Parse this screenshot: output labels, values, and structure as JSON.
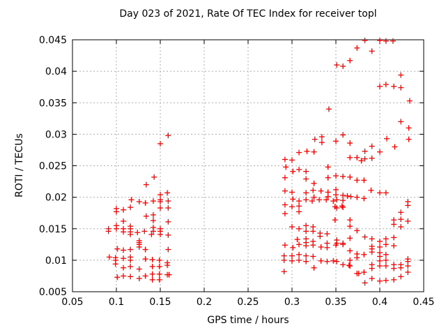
{
  "chart_data": {
    "type": "scatter",
    "title": "Day 023 of 2021, Rate Of TEC Index for receiver topl",
    "xlabel": "GPS time / hours",
    "ylabel": "ROTI / TECUs",
    "xlim": [
      0.05,
      0.45
    ],
    "ylim": [
      0.005,
      0.045
    ],
    "x_ticks": [
      "0.05",
      "0.1",
      "0.15",
      "0.2",
      "0.25",
      "0.3",
      "0.35",
      "0.4",
      "0.45"
    ],
    "y_ticks": [
      "0.005",
      "0.01",
      "0.015",
      "0.02",
      "0.025",
      "0.03",
      "0.035",
      "0.04",
      "0.045"
    ],
    "grid": true,
    "legend": "none",
    "marker": "plus",
    "marker_color": "#ff0000",
    "grid_color": "#ababab",
    "axis_color": "#000000",
    "points": [
      [
        0.159,
        0.0298
      ],
      [
        0.15,
        0.0285
      ],
      [
        0.143,
        0.0232
      ],
      [
        0.134,
        0.022
      ],
      [
        0.158,
        0.0207
      ],
      [
        0.15,
        0.0204
      ],
      [
        0.117,
        0.0196
      ],
      [
        0.126,
        0.0193
      ],
      [
        0.133,
        0.0191
      ],
      [
        0.142,
        0.0194
      ],
      [
        0.15,
        0.0196
      ],
      [
        0.15,
        0.0193
      ],
      [
        0.159,
        0.0194
      ],
      [
        0.1,
        0.0182
      ],
      [
        0.1,
        0.0177
      ],
      [
        0.108,
        0.018
      ],
      [
        0.116,
        0.0184
      ],
      [
        0.15,
        0.0183
      ],
      [
        0.159,
        0.0183
      ],
      [
        0.134,
        0.017
      ],
      [
        0.142,
        0.0172
      ],
      [
        0.142,
        0.0163
      ],
      [
        0.108,
        0.0162
      ],
      [
        0.159,
        0.0161
      ],
      [
        0.1,
        0.0155
      ],
      [
        0.116,
        0.0154
      ],
      [
        0.142,
        0.0152
      ],
      [
        0.091,
        0.015
      ],
      [
        0.1,
        0.015
      ],
      [
        0.108,
        0.015
      ],
      [
        0.116,
        0.015
      ],
      [
        0.15,
        0.015
      ],
      [
        0.091,
        0.0146
      ],
      [
        0.108,
        0.0145
      ],
      [
        0.116,
        0.0145
      ],
      [
        0.124,
        0.0144
      ],
      [
        0.132,
        0.0146
      ],
      [
        0.142,
        0.0146
      ],
      [
        0.15,
        0.0146
      ],
      [
        0.116,
        0.0141
      ],
      [
        0.14,
        0.0141
      ],
      [
        0.15,
        0.0141
      ],
      [
        0.159,
        0.014
      ],
      [
        0.126,
        0.0131
      ],
      [
        0.126,
        0.0128
      ],
      [
        0.126,
        0.0125
      ],
      [
        0.126,
        0.0121
      ],
      [
        0.101,
        0.0118
      ],
      [
        0.108,
        0.0116
      ],
      [
        0.116,
        0.0117
      ],
      [
        0.133,
        0.0117
      ],
      [
        0.159,
        0.0117
      ],
      [
        0.092,
        0.0105
      ],
      [
        0.099,
        0.0104
      ],
      [
        0.099,
        0.01
      ],
      [
        0.108,
        0.0103
      ],
      [
        0.116,
        0.0105
      ],
      [
        0.116,
        0.01
      ],
      [
        0.133,
        0.0102
      ],
      [
        0.141,
        0.0101
      ],
      [
        0.149,
        0.01
      ],
      [
        0.099,
        0.0094
      ],
      [
        0.108,
        0.0088
      ],
      [
        0.116,
        0.009
      ],
      [
        0.126,
        0.0086
      ],
      [
        0.158,
        0.0096
      ],
      [
        0.158,
        0.0092
      ],
      [
        0.141,
        0.009
      ],
      [
        0.149,
        0.009
      ],
      [
        0.141,
        0.0078
      ],
      [
        0.149,
        0.0078
      ],
      [
        0.158,
        0.0077
      ],
      [
        0.16,
        0.0077
      ],
      [
        0.101,
        0.0073
      ],
      [
        0.108,
        0.0075
      ],
      [
        0.116,
        0.0074
      ],
      [
        0.126,
        0.0071
      ],
      [
        0.133,
        0.0075
      ],
      [
        0.141,
        0.0069
      ],
      [
        0.149,
        0.0069
      ],
      [
        0.383,
        0.0449
      ],
      [
        0.4,
        0.0449
      ],
      [
        0.407,
        0.0448
      ],
      [
        0.415,
        0.0448
      ],
      [
        0.374,
        0.0437
      ],
      [
        0.391,
        0.0432
      ],
      [
        0.366,
        0.0417
      ],
      [
        0.351,
        0.041
      ],
      [
        0.358,
        0.0408
      ],
      [
        0.424,
        0.0394
      ],
      [
        0.4,
        0.0376
      ],
      [
        0.407,
        0.0379
      ],
      [
        0.416,
        0.0376
      ],
      [
        0.424,
        0.0374
      ],
      [
        0.434,
        0.0353
      ],
      [
        0.342,
        0.034
      ],
      [
        0.424,
        0.032
      ],
      [
        0.433,
        0.031
      ],
      [
        0.326,
        0.0292
      ],
      [
        0.334,
        0.0296
      ],
      [
        0.334,
        0.0287
      ],
      [
        0.35,
        0.0289
      ],
      [
        0.358,
        0.0299
      ],
      [
        0.408,
        0.0293
      ],
      [
        0.433,
        0.0292
      ],
      [
        0.366,
        0.0286
      ],
      [
        0.391,
        0.0281
      ],
      [
        0.417,
        0.028
      ],
      [
        0.308,
        0.0271
      ],
      [
        0.317,
        0.0273
      ],
      [
        0.325,
        0.0272
      ],
      [
        0.383,
        0.0273
      ],
      [
        0.4,
        0.0272
      ],
      [
        0.292,
        0.026
      ],
      [
        0.3,
        0.0259
      ],
      [
        0.366,
        0.0263
      ],
      [
        0.374,
        0.0263
      ],
      [
        0.383,
        0.0261
      ],
      [
        0.391,
        0.0262
      ],
      [
        0.379,
        0.0258
      ],
      [
        0.293,
        0.0248
      ],
      [
        0.301,
        0.0241
      ],
      [
        0.308,
        0.0244
      ],
      [
        0.316,
        0.0241
      ],
      [
        0.341,
        0.0248
      ],
      [
        0.292,
        0.0231
      ],
      [
        0.316,
        0.0229
      ],
      [
        0.341,
        0.0231
      ],
      [
        0.35,
        0.0234
      ],
      [
        0.358,
        0.0233
      ],
      [
        0.366,
        0.0232
      ],
      [
        0.374,
        0.0227
      ],
      [
        0.382,
        0.0227
      ],
      [
        0.325,
        0.0222
      ],
      [
        0.292,
        0.021
      ],
      [
        0.3,
        0.0208
      ],
      [
        0.316,
        0.0207
      ],
      [
        0.324,
        0.0211
      ],
      [
        0.333,
        0.021
      ],
      [
        0.341,
        0.0208
      ],
      [
        0.35,
        0.0212
      ],
      [
        0.39,
        0.0211
      ],
      [
        0.4,
        0.0207
      ],
      [
        0.407,
        0.0207
      ],
      [
        0.325,
        0.02
      ],
      [
        0.341,
        0.0201
      ],
      [
        0.35,
        0.0204
      ],
      [
        0.358,
        0.0203
      ],
      [
        0.363,
        0.0202
      ],
      [
        0.367,
        0.0201
      ],
      [
        0.374,
        0.02
      ],
      [
        0.382,
        0.0198
      ],
      [
        0.301,
        0.0197
      ],
      [
        0.308,
        0.0194
      ],
      [
        0.316,
        0.0196
      ],
      [
        0.323,
        0.0194
      ],
      [
        0.331,
        0.0196
      ],
      [
        0.339,
        0.0196
      ],
      [
        0.347,
        0.0194
      ],
      [
        0.351,
        0.0196
      ],
      [
        0.358,
        0.0195
      ],
      [
        0.432,
        0.0193
      ],
      [
        0.292,
        0.0188
      ],
      [
        0.3,
        0.0185
      ],
      [
        0.308,
        0.0186
      ],
      [
        0.349,
        0.0185
      ],
      [
        0.357,
        0.0186
      ],
      [
        0.351,
        0.0183
      ],
      [
        0.358,
        0.0184
      ],
      [
        0.432,
        0.0187
      ],
      [
        0.292,
        0.0174
      ],
      [
        0.308,
        0.0177
      ],
      [
        0.424,
        0.0176
      ],
      [
        0.349,
        0.0164
      ],
      [
        0.366,
        0.0164
      ],
      [
        0.416,
        0.0164
      ],
      [
        0.424,
        0.0165
      ],
      [
        0.432,
        0.0162
      ],
      [
        0.3,
        0.0153
      ],
      [
        0.308,
        0.015
      ],
      [
        0.316,
        0.0155
      ],
      [
        0.324,
        0.0153
      ],
      [
        0.366,
        0.0154
      ],
      [
        0.416,
        0.0157
      ],
      [
        0.424,
        0.0153
      ],
      [
        0.374,
        0.0147
      ],
      [
        0.316,
        0.0146
      ],
      [
        0.324,
        0.0146
      ],
      [
        0.332,
        0.0143
      ],
      [
        0.332,
        0.0138
      ],
      [
        0.34,
        0.0142
      ],
      [
        0.366,
        0.0135
      ],
      [
        0.383,
        0.0137
      ],
      [
        0.391,
        0.0134
      ],
      [
        0.4,
        0.013
      ],
      [
        0.407,
        0.0134
      ],
      [
        0.416,
        0.0136
      ],
      [
        0.306,
        0.0133
      ],
      [
        0.316,
        0.0134
      ],
      [
        0.316,
        0.0128
      ],
      [
        0.324,
        0.013
      ],
      [
        0.34,
        0.0127
      ],
      [
        0.351,
        0.0132
      ],
      [
        0.351,
        0.0127
      ],
      [
        0.358,
        0.0127
      ],
      [
        0.292,
        0.0124
      ],
      [
        0.301,
        0.012
      ],
      [
        0.308,
        0.0125
      ],
      [
        0.316,
        0.0123
      ],
      [
        0.324,
        0.0124
      ],
      [
        0.333,
        0.0121
      ],
      [
        0.34,
        0.012
      ],
      [
        0.35,
        0.0124
      ],
      [
        0.358,
        0.0125
      ],
      [
        0.391,
        0.0122
      ],
      [
        0.4,
        0.0121
      ],
      [
        0.407,
        0.0125
      ],
      [
        0.416,
        0.0123
      ],
      [
        0.391,
        0.0118
      ],
      [
        0.366,
        0.0115
      ],
      [
        0.391,
        0.0113
      ],
      [
        0.4,
        0.0112
      ],
      [
        0.374,
        0.011
      ],
      [
        0.382,
        0.0109
      ],
      [
        0.407,
        0.0109
      ],
      [
        0.291,
        0.0107
      ],
      [
        0.3,
        0.0107
      ],
      [
        0.308,
        0.0109
      ],
      [
        0.316,
        0.0107
      ],
      [
        0.324,
        0.0106
      ],
      [
        0.4,
        0.0106
      ],
      [
        0.374,
        0.0104
      ],
      [
        0.291,
        0.01
      ],
      [
        0.3,
        0.0099
      ],
      [
        0.308,
        0.01
      ],
      [
        0.316,
        0.0098
      ],
      [
        0.333,
        0.0099
      ],
      [
        0.34,
        0.0098
      ],
      [
        0.347,
        0.0099
      ],
      [
        0.351,
        0.0098
      ],
      [
        0.366,
        0.01
      ],
      [
        0.4,
        0.0099
      ],
      [
        0.407,
        0.01
      ],
      [
        0.432,
        0.0102
      ],
      [
        0.432,
        0.0098
      ],
      [
        0.358,
        0.0093
      ],
      [
        0.365,
        0.0092
      ],
      [
        0.391,
        0.0093
      ],
      [
        0.391,
        0.0087
      ],
      [
        0.4,
        0.0091
      ],
      [
        0.407,
        0.0091
      ],
      [
        0.416,
        0.0093
      ],
      [
        0.416,
        0.0087
      ],
      [
        0.424,
        0.0093
      ],
      [
        0.424,
        0.0088
      ],
      [
        0.432,
        0.0091
      ],
      [
        0.366,
        0.0091
      ],
      [
        0.325,
        0.0088
      ],
      [
        0.291,
        0.0082
      ],
      [
        0.374,
        0.0079
      ],
      [
        0.376,
        0.0079
      ],
      [
        0.382,
        0.0081
      ],
      [
        0.432,
        0.0081
      ],
      [
        0.391,
        0.0071
      ],
      [
        0.4,
        0.0067
      ],
      [
        0.407,
        0.0068
      ],
      [
        0.416,
        0.0069
      ],
      [
        0.424,
        0.0074
      ],
      [
        0.383,
        0.0064
      ]
    ]
  }
}
